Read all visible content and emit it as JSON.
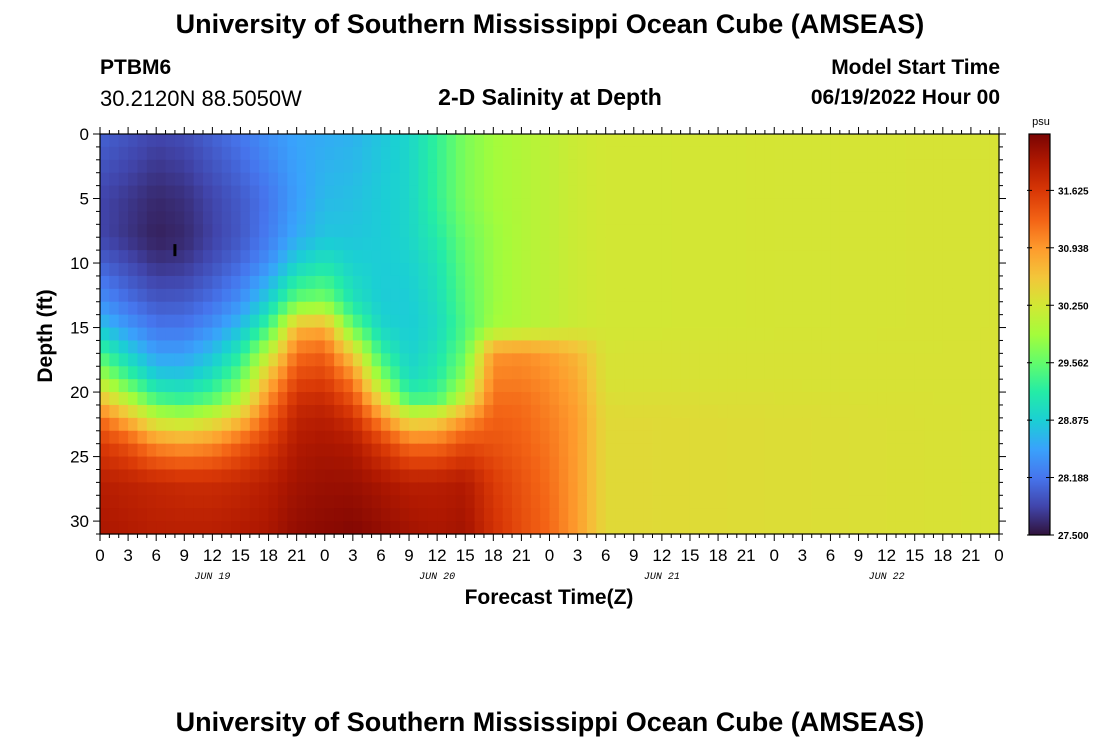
{
  "header": {
    "title": "University of Southern Mississippi Ocean Cube (AMSEAS)",
    "station": "PTBM6",
    "coordinates": "30.2120N  88.5050W",
    "subtitle": "2-D Salinity at Depth",
    "start_label": "Model Start Time",
    "start_value": "06/19/2022 Hour 00"
  },
  "footer": {
    "title": "University of Southern Mississippi Ocean Cube (AMSEAS)"
  },
  "chart_data": {
    "type": "heatmap",
    "title": "2-D Salinity at Depth",
    "xlabel": "Forecast Time(Z)",
    "ylabel": "Depth (ft)",
    "x_unit": "hours from model start",
    "xlim": [
      0,
      96
    ],
    "ylim": [
      31,
      0
    ],
    "y_ticks": [
      0,
      5,
      10,
      15,
      20,
      25,
      30
    ],
    "x_tick_labels": [
      "0",
      "3",
      "6",
      "9",
      "12",
      "15",
      "18",
      "21",
      "0",
      "3",
      "6",
      "9",
      "12",
      "15",
      "18",
      "21",
      "0",
      "3",
      "6",
      "9",
      "12",
      "15",
      "18",
      "21",
      "0",
      "3",
      "6",
      "9",
      "12",
      "15",
      "18",
      "21",
      "0"
    ],
    "day_labels": [
      {
        "label": "JUN 19",
        "hour": 12
      },
      {
        "label": "JUN 20",
        "hour": 36
      },
      {
        "label": "JUN 21",
        "hour": 60
      },
      {
        "label": "JUN 22",
        "hour": 84
      }
    ],
    "colorbar": {
      "unit": "psu",
      "min": 27.5,
      "max": 32.3,
      "tick_labels": [
        "27.500",
        "28.188",
        "28.875",
        "29.562",
        "30.250",
        "30.938",
        "31.625"
      ],
      "colors": [
        "#30123b",
        "#4145ab",
        "#4675ed",
        "#39a2fc",
        "#1bcfd4",
        "#24eca6",
        "#61fc6c",
        "#a4fc3b",
        "#d1e834",
        "#f3c63a",
        "#fe9b2d",
        "#f36315",
        "#d93806",
        "#b11901",
        "#7a0403"
      ]
    },
    "grid_columns_hours": [
      0,
      3,
      6,
      9,
      12,
      15,
      18,
      21,
      24,
      27,
      30,
      33,
      36,
      39,
      42,
      45,
      48,
      51,
      54,
      96
    ],
    "depth_rows_ft": [
      0,
      5,
      8,
      10,
      13,
      15,
      17,
      19,
      20.5,
      22,
      24,
      27,
      31
    ],
    "salinity": [
      [
        28.05,
        27.95,
        27.85,
        27.9,
        28.05,
        28.2,
        28.4,
        28.55,
        28.6,
        28.65,
        28.8,
        28.95,
        29.3,
        29.7,
        29.9,
        30.0,
        30.1,
        30.2,
        30.25,
        30.3
      ],
      [
        27.85,
        27.75,
        27.65,
        27.7,
        27.85,
        28.0,
        28.2,
        28.5,
        28.7,
        28.75,
        28.85,
        28.95,
        29.3,
        29.7,
        29.9,
        30.0,
        30.1,
        30.2,
        30.25,
        30.3
      ],
      [
        27.85,
        27.72,
        27.6,
        27.65,
        27.82,
        27.98,
        28.25,
        28.6,
        28.8,
        28.8,
        28.85,
        28.95,
        29.2,
        29.6,
        29.85,
        30.0,
        30.1,
        30.2,
        30.25,
        30.3
      ],
      [
        28.05,
        27.88,
        27.72,
        27.75,
        27.92,
        28.1,
        28.4,
        28.9,
        29.1,
        28.9,
        28.85,
        28.9,
        29.1,
        29.55,
        29.85,
        30.0,
        30.1,
        30.2,
        30.25,
        30.3
      ],
      [
        28.4,
        28.15,
        27.98,
        28.0,
        28.15,
        28.4,
        28.9,
        29.6,
        29.7,
        29.1,
        28.85,
        28.85,
        29.05,
        29.5,
        29.85,
        30.0,
        30.1,
        30.2,
        30.25,
        30.3
      ],
      [
        28.8,
        28.45,
        28.2,
        28.2,
        28.4,
        28.75,
        29.4,
        30.7,
        30.8,
        29.6,
        28.95,
        28.85,
        29.0,
        29.45,
        29.9,
        30.0,
        30.1,
        30.2,
        30.25,
        30.3
      ],
      [
        29.4,
        28.9,
        28.5,
        28.5,
        28.75,
        29.2,
        30.1,
        31.2,
        31.3,
        30.5,
        29.3,
        28.9,
        29.1,
        29.6,
        30.95,
        31.0,
        30.9,
        30.7,
        30.3,
        30.3
      ],
      [
        30.0,
        29.4,
        28.9,
        28.85,
        29.1,
        29.6,
        30.7,
        31.5,
        31.55,
        31.1,
        29.8,
        29.0,
        29.2,
        29.8,
        31.1,
        31.1,
        31.0,
        30.8,
        30.3,
        30.3
      ],
      [
        30.6,
        30.0,
        29.4,
        29.3,
        29.5,
        30.0,
        31.0,
        31.7,
        31.75,
        31.4,
        30.4,
        29.4,
        29.45,
        30.2,
        31.2,
        31.2,
        31.05,
        30.85,
        30.35,
        30.3
      ],
      [
        31.2,
        30.7,
        30.1,
        30.0,
        30.2,
        30.6,
        31.3,
        31.85,
        31.9,
        31.7,
        31.0,
        30.3,
        30.4,
        30.9,
        31.3,
        31.25,
        31.1,
        30.9,
        30.4,
        30.3
      ],
      [
        31.6,
        31.4,
        31.0,
        30.9,
        31.0,
        31.3,
        31.6,
        31.95,
        32.0,
        31.95,
        31.6,
        31.2,
        31.2,
        31.45,
        31.4,
        31.3,
        31.15,
        30.9,
        30.4,
        30.3
      ],
      [
        31.9,
        31.85,
        31.8,
        31.75,
        31.75,
        31.8,
        31.9,
        32.05,
        32.1,
        32.1,
        32.0,
        31.9,
        31.9,
        31.95,
        31.6,
        31.4,
        31.2,
        30.9,
        30.4,
        30.3
      ],
      [
        32.0,
        31.95,
        31.9,
        31.9,
        31.9,
        31.95,
        32.0,
        32.15,
        32.2,
        32.25,
        32.15,
        32.05,
        32.0,
        32.05,
        31.7,
        31.45,
        31.25,
        30.9,
        30.4,
        30.3
      ]
    ],
    "marker": {
      "hour": 8,
      "depth": 9,
      "label": "I"
    }
  }
}
